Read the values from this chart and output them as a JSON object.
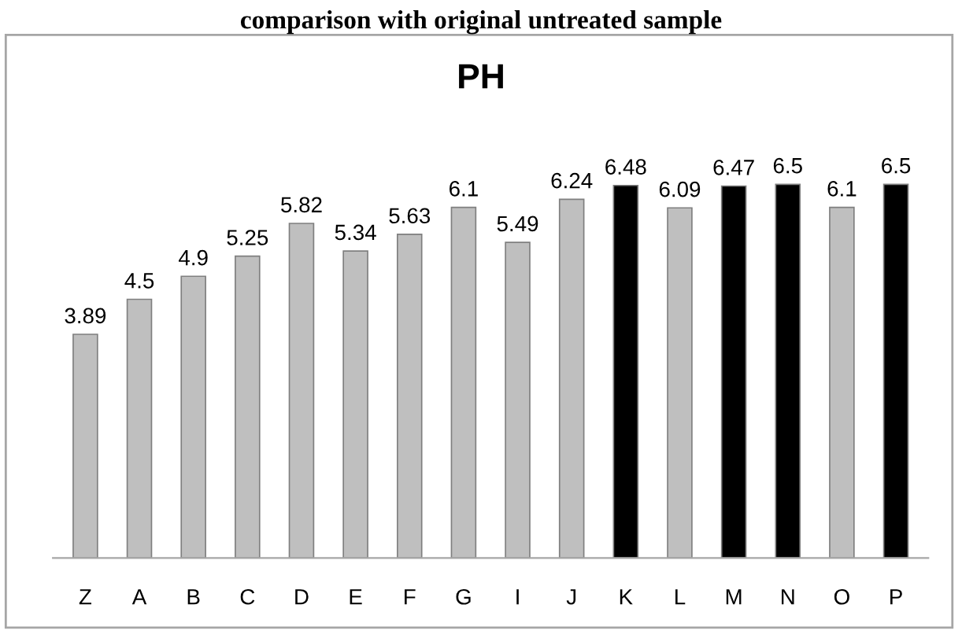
{
  "chart_data": {
    "type": "bar",
    "title": "PH",
    "categories": [
      "Z",
      "A",
      "B",
      "C",
      "D",
      "E",
      "F",
      "G",
      "I",
      "J",
      "K",
      "L",
      "M",
      "N",
      "O",
      "P"
    ],
    "values": [
      3.89,
      4.5,
      4.9,
      5.25,
      5.82,
      5.34,
      5.63,
      6.1,
      5.49,
      6.24,
      6.48,
      6.09,
      6.47,
      6.5,
      6.1,
      6.5
    ],
    "colors": [
      "#bfbfbf",
      "#bfbfbf",
      "#bfbfbf",
      "#bfbfbf",
      "#bfbfbf",
      "#bfbfbf",
      "#bfbfbf",
      "#bfbfbf",
      "#bfbfbf",
      "#bfbfbf",
      "#000000",
      "#bfbfbf",
      "#000000",
      "#000000",
      "#bfbfbf",
      "#000000"
    ],
    "data_labels": true,
    "annotations": [
      "comparison with original untreated sample"
    ]
  }
}
